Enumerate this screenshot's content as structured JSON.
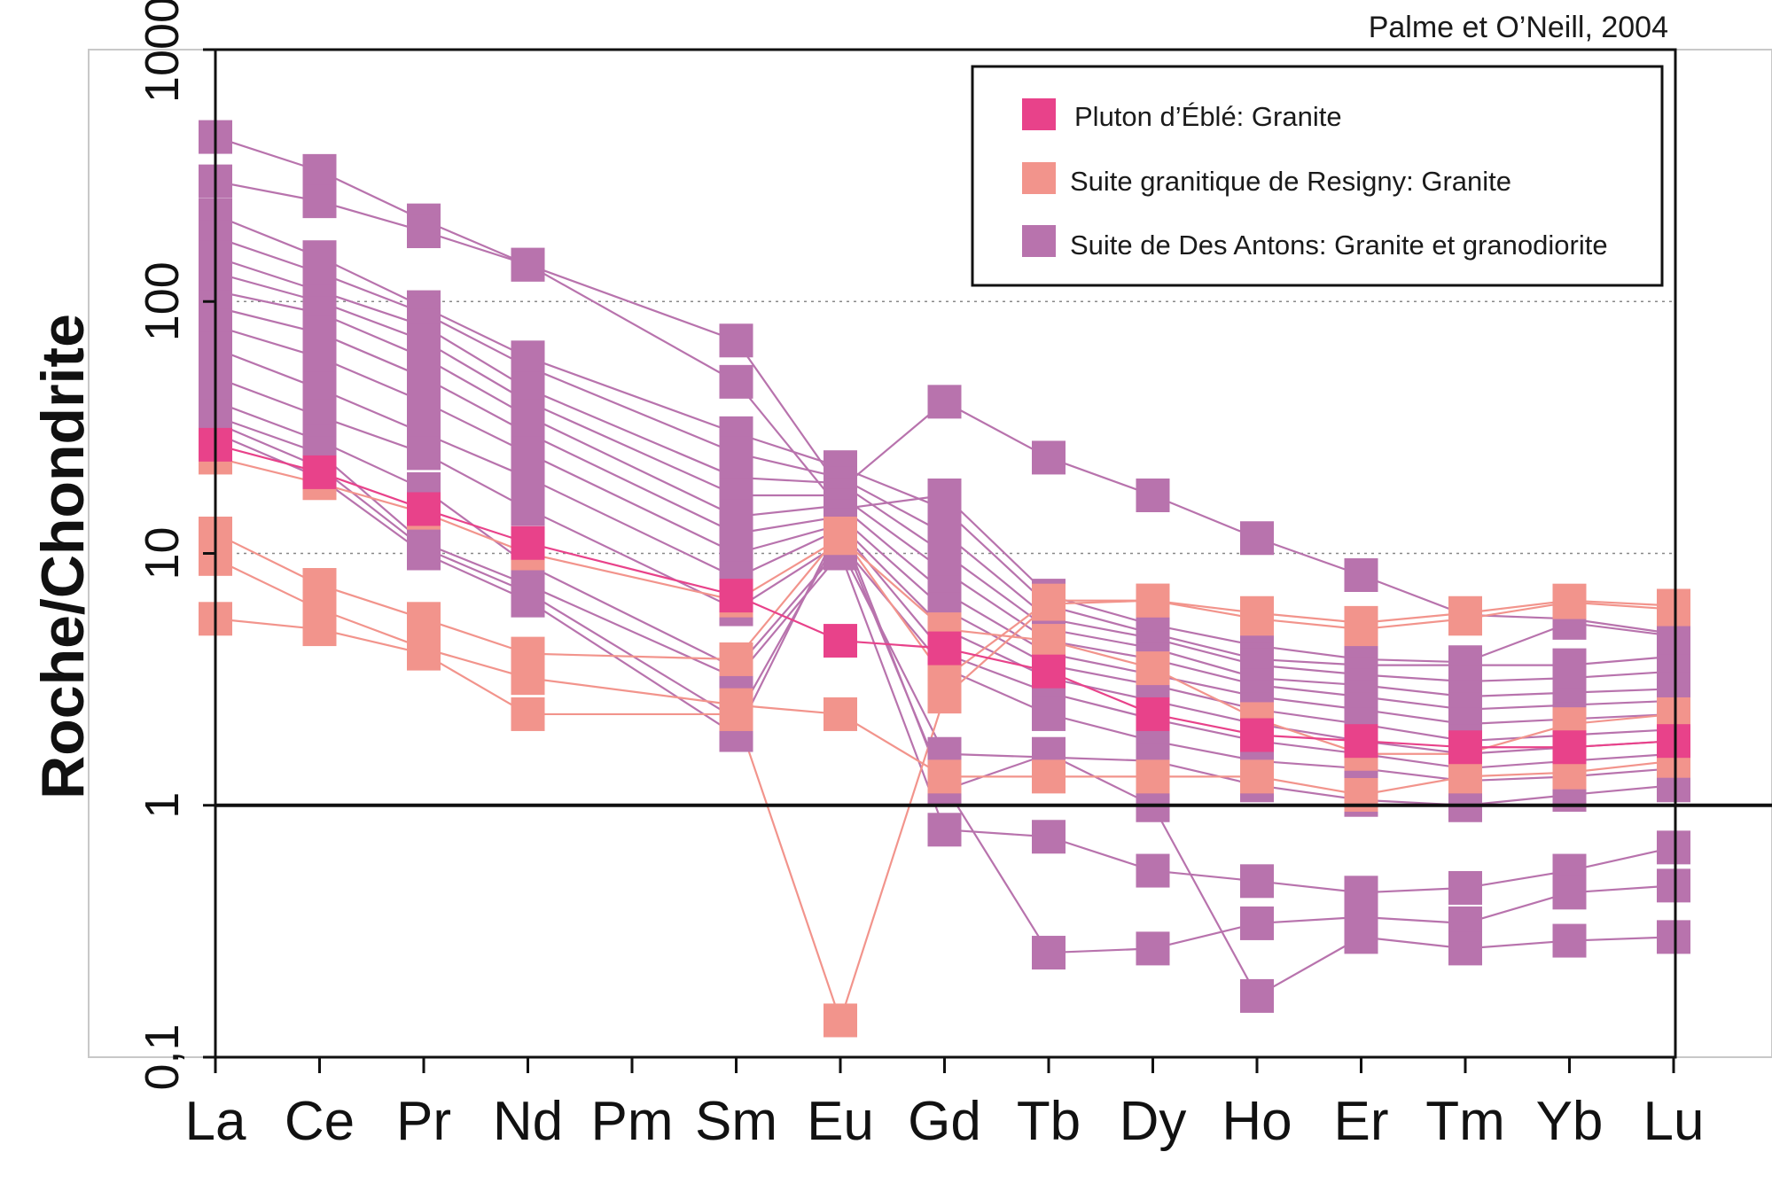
{
  "source": "Palme et O’Neill, 2004",
  "colors": {
    "pluton": "#e8428a",
    "resigny": "#f2948c",
    "antons": "#b873ad",
    "axis": "#111111",
    "grid": "#888888"
  },
  "chart_data": {
    "type": "line",
    "ylabel": "Roche/Chondrite",
    "yscale": "log",
    "ylim": [
      0.1,
      1000
    ],
    "ytick_values": [
      0.1,
      1,
      10,
      100,
      1000
    ],
    "ytick_labels": [
      "0,1",
      "1",
      "10",
      "100",
      "1000"
    ],
    "gridlines": [
      1,
      10,
      100
    ],
    "reference_line": 1,
    "categories": [
      "La",
      "Ce",
      "Pr",
      "Nd",
      "Pm",
      "Sm",
      "Eu",
      "Gd",
      "Tb",
      "Dy",
      "Ho",
      "Er",
      "Tm",
      "Yb",
      "Lu"
    ],
    "legend": [
      {
        "label": "Pluton d’Éblé: Granite",
        "color_key": "pluton"
      },
      {
        "label": "Suite granitique de Resigny: Granite",
        "color_key": "resigny"
      },
      {
        "label": "Suite de Des Antons: Granite et granodiorite",
        "color_key": "antons"
      }
    ],
    "series": [
      {
        "name": "Pluton d’Éblé: Granite",
        "color_key": "pluton",
        "values": [
          27,
          21,
          15,
          11,
          null,
          6.8,
          4.5,
          4.2,
          3.4,
          2.3,
          1.9,
          1.8,
          1.7,
          1.7,
          1.8
        ]
      },
      {
        "name": "Suite granitique de Resigny: Granite",
        "color_key": "resigny",
        "values": [
          24,
          19,
          14.5,
          10,
          null,
          6.5,
          11.5,
          5,
          4.5,
          3.5,
          2.2,
          1.6,
          1.6,
          2.1,
          2.3
        ]
      },
      {
        "name": "Suite granitique de Resigny: Granite",
        "color_key": "resigny",
        "values": [
          12,
          7.5,
          5.5,
          4,
          null,
          3.8,
          12,
          3.2,
          6.5,
          6.5,
          5.8,
          5.3,
          5.8,
          6.5,
          6.2
        ]
      },
      {
        "name": "Suite granitique de Resigny: Granite",
        "color_key": "resigny",
        "values": [
          9.5,
          6,
          4.2,
          3.2,
          null,
          2.5,
          2.3,
          1.3,
          1.3,
          1.3,
          1.3,
          1.1,
          1.3,
          1.35,
          1.5
        ]
      },
      {
        "name": "Suite granitique de Resigny: Granite",
        "color_key": "resigny",
        "values": [
          5.5,
          5,
          4,
          2.3,
          null,
          2.3,
          0.14,
          2.7,
          6.3,
          6.5,
          5.5,
          5,
          5.5,
          6.4,
          6
        ]
      },
      {
        "name": "Suite de Des Antons: Granite et granodiorite",
        "color_key": "antons",
        "values": [
          450,
          330,
          210,
          140,
          null,
          70,
          18,
          40,
          24,
          17,
          11.5,
          8.2,
          5.7,
          5.5,
          4.8
        ]
      },
      {
        "name": "Suite de Des Antons: Granite et granodiorite",
        "color_key": "antons",
        "values": [
          300,
          250,
          190,
          140,
          null,
          48,
          15,
          17,
          6.8,
          5.2,
          4.3,
          3.8,
          3.7,
          5.3,
          4.7
        ]
      },
      {
        "name": "Suite de Des Antons: Granite et granodiorite",
        "color_key": "antons",
        "values": [
          220,
          150,
          95,
          60,
          null,
          30,
          22,
          15,
          6.2,
          4.8,
          3.8,
          3.6,
          3.6,
          3.6,
          3.9
        ]
      },
      {
        "name": "Suite de Des Antons: Granite et granodiorite",
        "color_key": "antons",
        "values": [
          180,
          130,
          90,
          55,
          null,
          25,
          20,
          12,
          5.5,
          4.6,
          3.6,
          3.3,
          3.1,
          3.2,
          3.4
        ]
      },
      {
        "name": "Suite de Des Antons: Granite et granodiorite",
        "color_key": "antons",
        "values": [
          150,
          110,
          80,
          45,
          null,
          20,
          19,
          10,
          5,
          4.2,
          3.2,
          3,
          2.7,
          2.8,
          2.9
        ]
      },
      {
        "name": "Suite de Des Antons: Granite et granodiorite",
        "color_key": "antons",
        "values": [
          130,
          100,
          70,
          40,
          null,
          17,
          17,
          8.5,
          4.5,
          3.8,
          3,
          2.7,
          2.4,
          2.5,
          2.6
        ]
      },
      {
        "name": "Suite de Des Antons: Granite et granodiorite",
        "color_key": "antons",
        "values": [
          110,
          90,
          60,
          35,
          null,
          14,
          15.5,
          7,
          4,
          3.3,
          2.7,
          2.4,
          2.1,
          2.2,
          2.3
        ]
      },
      {
        "name": "Suite de Des Antons: Granite et granodiorite",
        "color_key": "antons",
        "values": [
          95,
          75,
          50,
          30,
          null,
          12,
          14,
          6,
          3.6,
          3,
          2.4,
          2.1,
          1.8,
          1.9,
          2
        ]
      },
      {
        "name": "Suite de Des Antons: Granite et granodiorite",
        "color_key": "antons",
        "values": [
          80,
          60,
          40,
          25,
          null,
          10,
          13,
          5,
          3.2,
          2.6,
          2.1,
          1.8,
          1.6,
          1.7,
          1.8
        ]
      },
      {
        "name": "Suite de Des Antons: Granite et granodiorite",
        "color_key": "antons",
        "values": [
          65,
          45,
          30,
          20,
          null,
          8,
          12.5,
          4,
          2.8,
          2.2,
          1.8,
          1.6,
          1.4,
          1.5,
          1.6
        ]
      },
      {
        "name": "Suite de Des Antons: Granite et granodiorite",
        "color_key": "antons",
        "values": [
          50,
          35,
          25,
          15,
          null,
          6,
          11,
          3.5,
          2.3,
          1.8,
          1.5,
          1.4,
          1.25,
          1.3,
          1.4
        ]
      },
      {
        "name": "Suite de Des Antons: Granite et granodiorite",
        "color_key": "antons",
        "values": [
          40,
          28,
          18,
          9,
          null,
          3.5,
          10.5,
          1.6,
          1.55,
          1.5,
          1.2,
          1.05,
          1.0,
          1.1,
          1.2
        ]
      },
      {
        "name": "Suite de Des Antons: Granite et granodiorite",
        "color_key": "antons",
        "values": [
          35,
          25,
          11,
          7.5,
          null,
          3.2,
          10,
          0.8,
          0.75,
          0.55,
          0.5,
          0.45,
          0.47,
          0.55,
          0.68
        ]
      },
      {
        "name": "Suite de Des Antons: Granite et granodiorite",
        "color_key": "antons",
        "values": [
          33,
          22,
          10.5,
          7,
          null,
          2.2,
          12,
          1.2,
          0.26,
          0.27,
          0.34,
          0.36,
          0.34,
          0.45,
          0.48
        ]
      },
      {
        "name": "Suite de Des Antons: Granite et granodiorite",
        "color_key": "antons",
        "values": [
          30,
          20,
          10,
          6.5,
          null,
          1.9,
          13,
          1.15,
          1.6,
          1.0,
          0.175,
          0.3,
          0.27,
          0.29,
          0.3
        ]
      }
    ]
  }
}
